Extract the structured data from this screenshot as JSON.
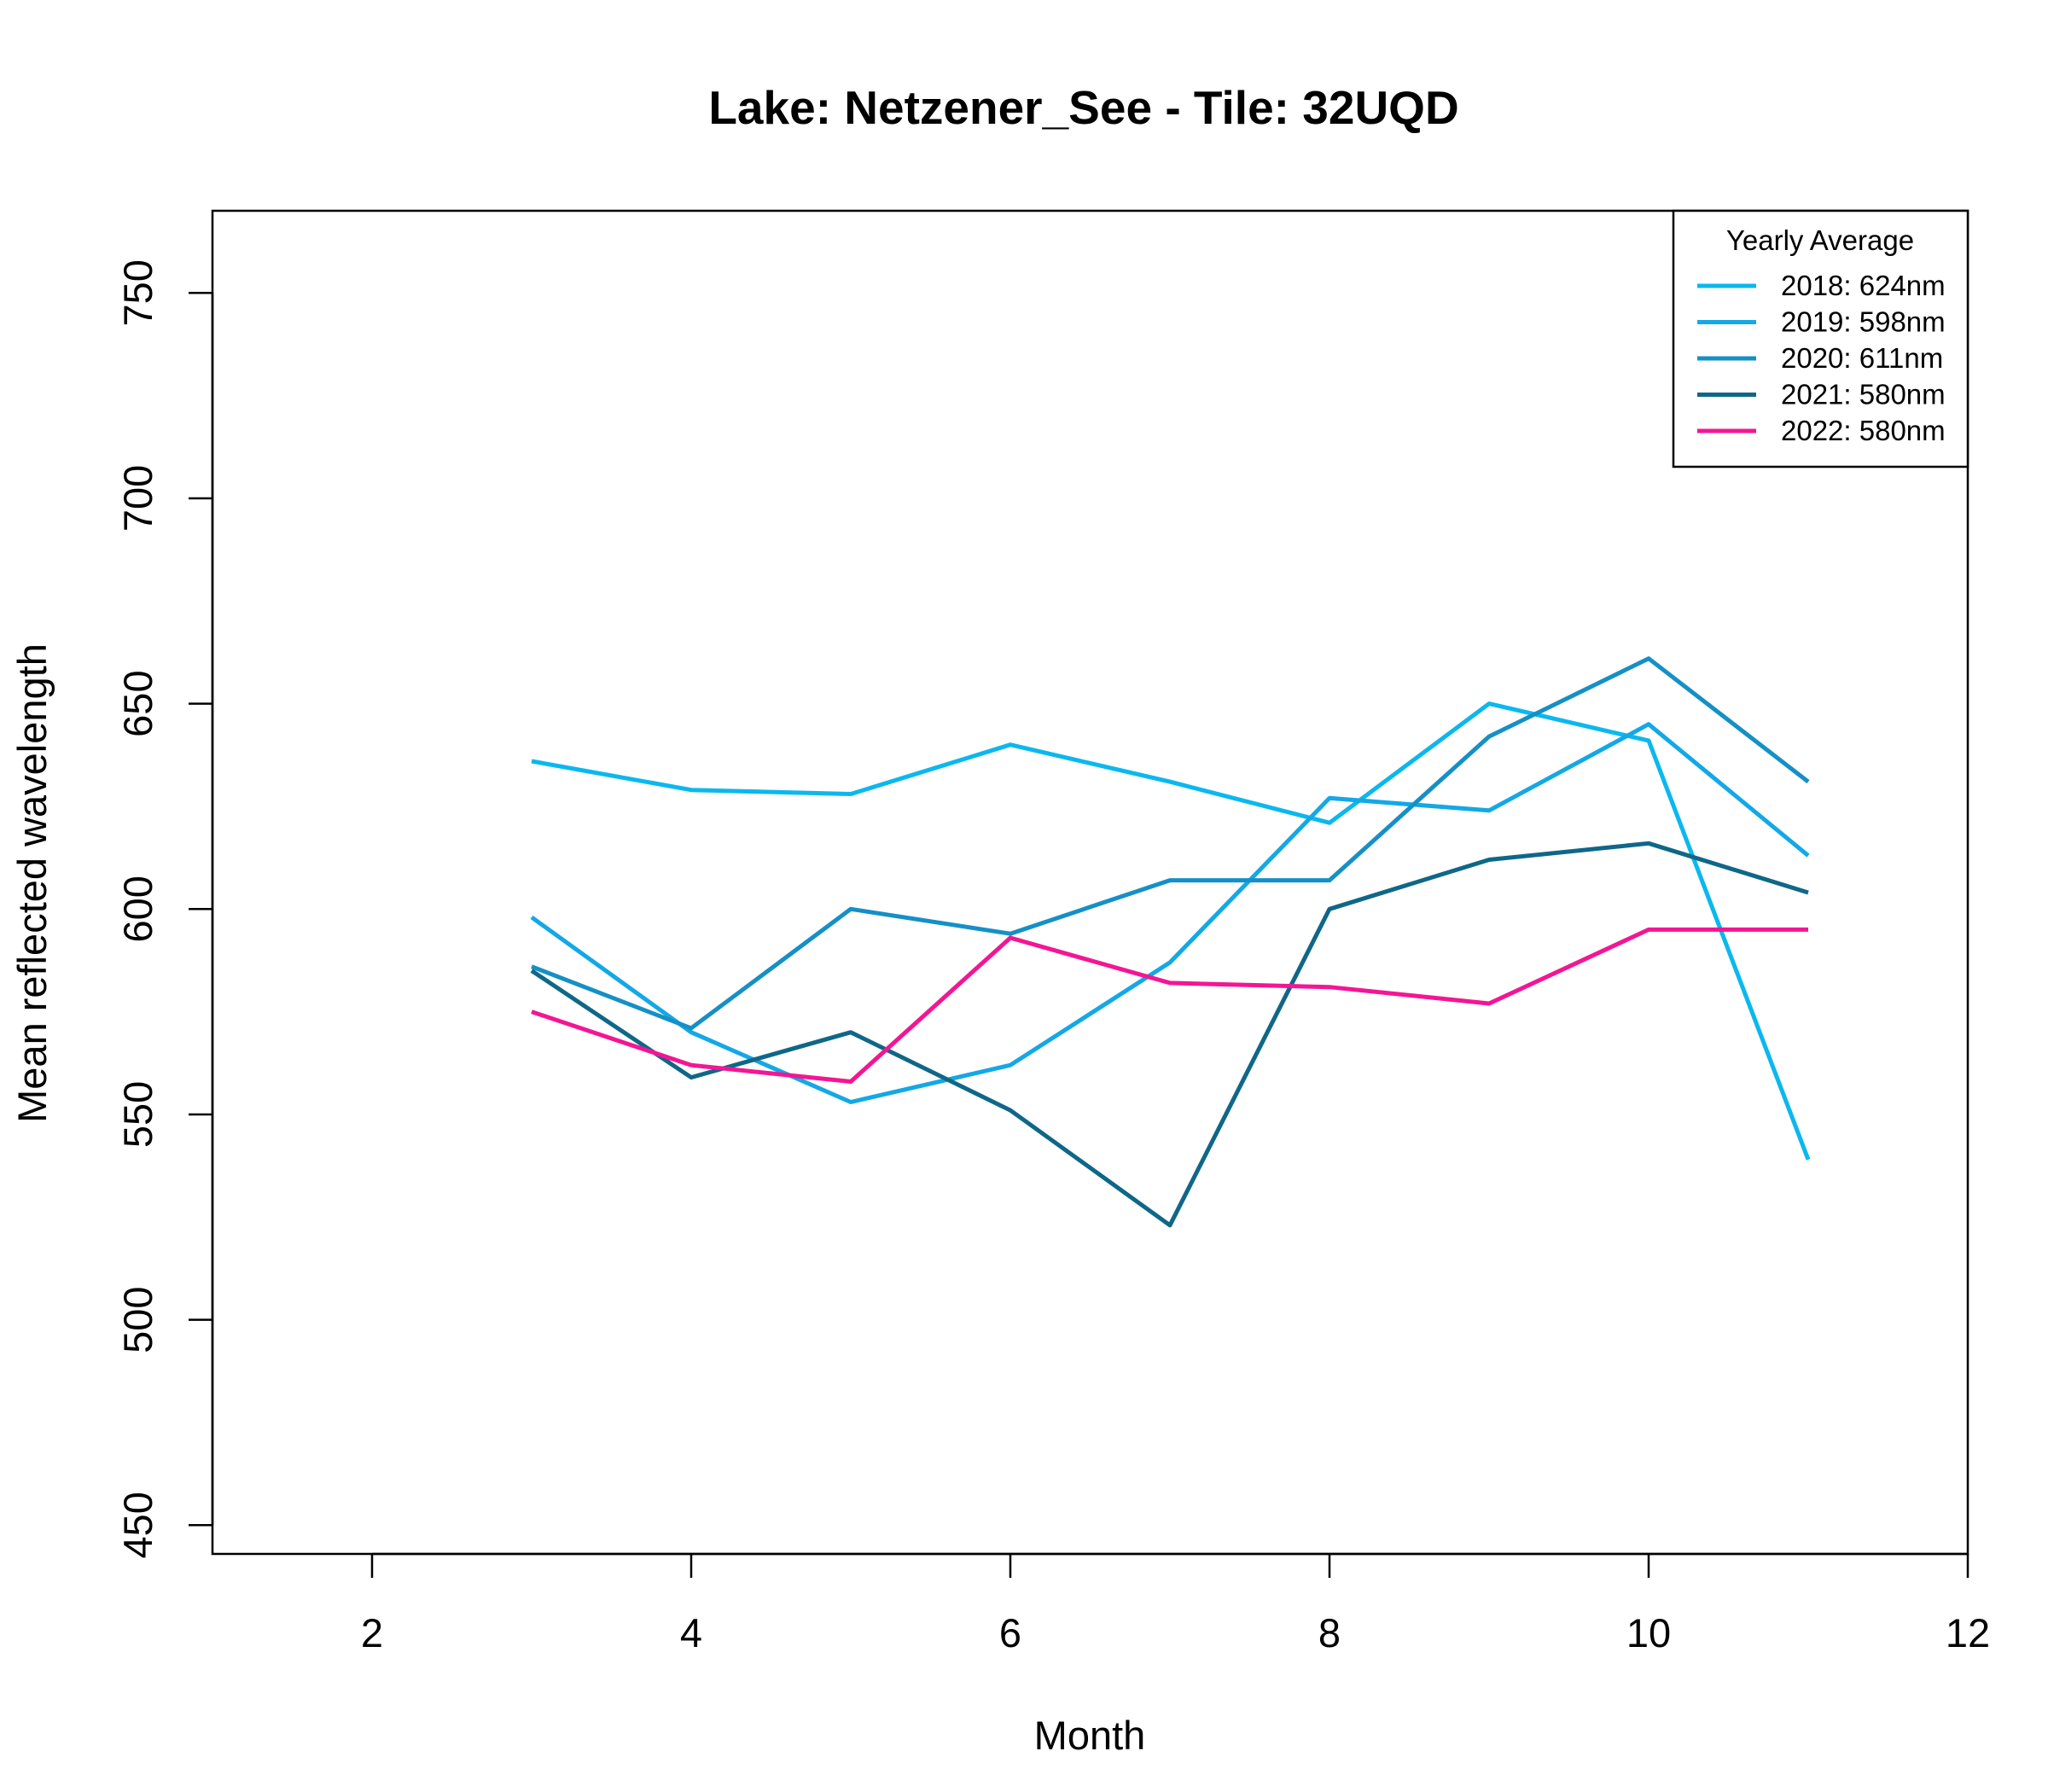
{
  "chart_data": {
    "type": "line",
    "title": "Lake: Netzener_See  - Tile: 32UQD",
    "xlabel": "Month",
    "ylabel": "Mean reflected wavelength",
    "xlim": [
      1,
      12
    ],
    "ylim": [
      443,
      770
    ],
    "x_ticks": [
      2,
      4,
      6,
      8,
      10,
      12
    ],
    "y_ticks": [
      450,
      500,
      550,
      600,
      650,
      700,
      750
    ],
    "grid": false,
    "legend": {
      "title": "Yearly Average",
      "position": "top-right"
    },
    "x": [
      3,
      4,
      5,
      6,
      7,
      8,
      9,
      10,
      11
    ],
    "series": [
      {
        "name": "2018: 624nm",
        "color": "#0bb8ee",
        "values": [
          636,
          629,
          628,
          640,
          631,
          621,
          650,
          641,
          539
        ]
      },
      {
        "name": "2019: 598nm",
        "color": "#13a8e6",
        "values": [
          598,
          570,
          553,
          562,
          587,
          627,
          624,
          645,
          613
        ]
      },
      {
        "name": "2020: 611nm",
        "color": "#1590c6",
        "values": [
          586,
          571,
          600,
          594,
          607,
          607,
          642,
          661,
          631
        ]
      },
      {
        "name": "2021: 580nm",
        "color": "#0f6788",
        "values": [
          585,
          559,
          570,
          551,
          523,
          600,
          612,
          616,
          604
        ]
      },
      {
        "name": "2022: 580nm",
        "color": "#f31694",
        "values": [
          575,
          562,
          558,
          593,
          582,
          581,
          577,
          595,
          595
        ]
      }
    ]
  }
}
